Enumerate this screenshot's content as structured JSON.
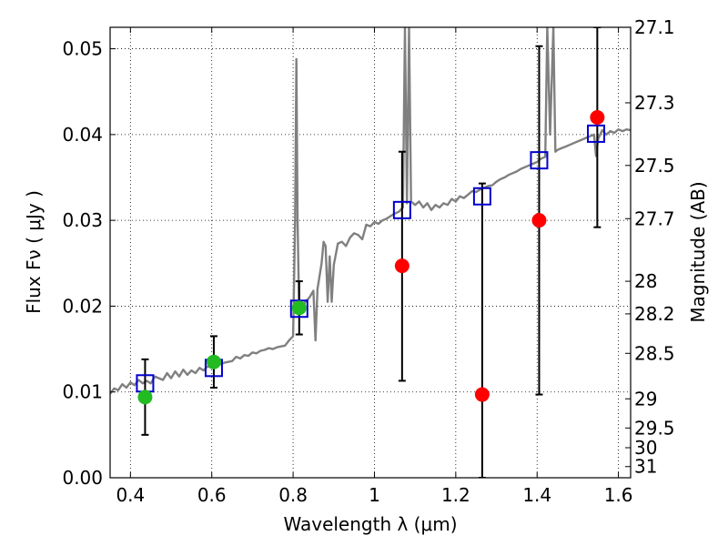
{
  "chart_data": {
    "type": "scatter",
    "xlabel": "Wavelength  λ (μm)",
    "ylabel": "Flux  Fν ( μJy )",
    "ylabel_right": "Magnitude (AB)",
    "xlim": [
      0.35,
      1.63
    ],
    "ylim": [
      0.0,
      0.0525
    ],
    "grid": true,
    "x_ticks": [
      0.4,
      0.6,
      0.8,
      1.0,
      1.2,
      1.4,
      1.6
    ],
    "x_tick_labels": [
      "0.4",
      "0.6",
      "0.8",
      "1",
      "1.2",
      "1.4",
      "1.6"
    ],
    "y_ticks": [
      0.0,
      0.01,
      0.02,
      0.03,
      0.04,
      0.05
    ],
    "y_tick_labels": [
      "0.00",
      "0.01",
      "0.02",
      "0.03",
      "0.04",
      "0.05"
    ],
    "right_ticks": [
      {
        "flux": 0.0525,
        "label": "27.1"
      },
      {
        "flux": 0.0437,
        "label": "27.3"
      },
      {
        "flux": 0.0364,
        "label": "27.5"
      },
      {
        "flux": 0.0302,
        "label": "27.7"
      },
      {
        "flux": 0.0229,
        "label": "28"
      },
      {
        "flux": 0.0191,
        "label": "28.2"
      },
      {
        "flux": 0.0145,
        "label": "28.5"
      },
      {
        "flux": 0.0092,
        "label": "29"
      },
      {
        "flux": 0.0058,
        "label": "29.5"
      },
      {
        "flux": 0.0035,
        "label": "30"
      },
      {
        "flux": 0.0013,
        "label": "31"
      }
    ],
    "template_spectrum": {
      "color": "#808080",
      "points": [
        [
          0.35,
          0.0098
        ],
        [
          0.36,
          0.0104
        ],
        [
          0.37,
          0.0102
        ],
        [
          0.38,
          0.0109
        ],
        [
          0.39,
          0.0105
        ],
        [
          0.4,
          0.0111
        ],
        [
          0.41,
          0.0108
        ],
        [
          0.42,
          0.0114
        ],
        [
          0.43,
          0.011
        ],
        [
          0.44,
          0.0113
        ],
        [
          0.45,
          0.011
        ],
        [
          0.46,
          0.0118
        ],
        [
          0.47,
          0.0116
        ],
        [
          0.48,
          0.0114
        ],
        [
          0.49,
          0.0122
        ],
        [
          0.5,
          0.0116
        ],
        [
          0.51,
          0.0124
        ],
        [
          0.52,
          0.0118
        ],
        [
          0.53,
          0.0126
        ],
        [
          0.54,
          0.012
        ],
        [
          0.55,
          0.0125
        ],
        [
          0.56,
          0.0122
        ],
        [
          0.57,
          0.0128
        ],
        [
          0.58,
          0.0125
        ],
        [
          0.59,
          0.013
        ],
        [
          0.6,
          0.0128
        ],
        [
          0.61,
          0.0131
        ],
        [
          0.62,
          0.0132
        ],
        [
          0.63,
          0.0134
        ],
        [
          0.64,
          0.0135
        ],
        [
          0.65,
          0.0136
        ],
        [
          0.66,
          0.0141
        ],
        [
          0.67,
          0.0139
        ],
        [
          0.68,
          0.0143
        ],
        [
          0.69,
          0.0142
        ],
        [
          0.7,
          0.0146
        ],
        [
          0.71,
          0.0145
        ],
        [
          0.72,
          0.0148
        ],
        [
          0.73,
          0.0149
        ],
        [
          0.74,
          0.0151
        ],
        [
          0.75,
          0.015
        ],
        [
          0.76,
          0.0152
        ],
        [
          0.77,
          0.0153
        ],
        [
          0.78,
          0.0154
        ],
        [
          0.79,
          0.016
        ],
        [
          0.8,
          0.0165
        ],
        [
          0.805,
          0.03
        ],
        [
          0.808,
          0.0488
        ],
        [
          0.811,
          0.03
        ],
        [
          0.815,
          0.019
        ],
        [
          0.82,
          0.0195
        ],
        [
          0.83,
          0.0205
        ],
        [
          0.84,
          0.021
        ],
        [
          0.85,
          0.0218
        ],
        [
          0.855,
          0.016
        ],
        [
          0.86,
          0.022
        ],
        [
          0.87,
          0.025
        ],
        [
          0.875,
          0.0275
        ],
        [
          0.88,
          0.027
        ],
        [
          0.885,
          0.0205
        ],
        [
          0.89,
          0.0258
        ],
        [
          0.895,
          0.0205
        ],
        [
          0.9,
          0.0248
        ],
        [
          0.91,
          0.0273
        ],
        [
          0.92,
          0.0275
        ],
        [
          0.93,
          0.027
        ],
        [
          0.94,
          0.028
        ],
        [
          0.95,
          0.0285
        ],
        [
          0.96,
          0.0283
        ],
        [
          0.97,
          0.0278
        ],
        [
          0.98,
          0.0295
        ],
        [
          0.99,
          0.0293
        ],
        [
          1.0,
          0.0298
        ],
        [
          1.01,
          0.0296
        ],
        [
          1.02,
          0.03
        ],
        [
          1.03,
          0.0302
        ],
        [
          1.04,
          0.0305
        ],
        [
          1.05,
          0.0308
        ],
        [
          1.06,
          0.031
        ],
        [
          1.07,
          0.0315
        ],
        [
          1.075,
          0.0525
        ],
        [
          1.08,
          0.032
        ],
        [
          1.085,
          0.0525
        ],
        [
          1.09,
          0.0322
        ],
        [
          1.1,
          0.0318
        ],
        [
          1.11,
          0.0322
        ],
        [
          1.12,
          0.0315
        ],
        [
          1.13,
          0.032
        ],
        [
          1.14,
          0.0312
        ],
        [
          1.15,
          0.0318
        ],
        [
          1.16,
          0.0315
        ],
        [
          1.17,
          0.032
        ],
        [
          1.18,
          0.0318
        ],
        [
          1.19,
          0.0325
        ],
        [
          1.2,
          0.0322
        ],
        [
          1.21,
          0.0328
        ],
        [
          1.22,
          0.0326
        ],
        [
          1.23,
          0.033
        ],
        [
          1.24,
          0.0334
        ],
        [
          1.25,
          0.0333
        ],
        [
          1.26,
          0.0336
        ],
        [
          1.27,
          0.0338
        ],
        [
          1.28,
          0.034
        ],
        [
          1.29,
          0.0341
        ],
        [
          1.3,
          0.0345
        ],
        [
          1.31,
          0.0348
        ],
        [
          1.32,
          0.035
        ],
        [
          1.33,
          0.0353
        ],
        [
          1.34,
          0.0355
        ],
        [
          1.35,
          0.0357
        ],
        [
          1.36,
          0.036
        ],
        [
          1.37,
          0.0362
        ],
        [
          1.38,
          0.0364
        ],
        [
          1.39,
          0.0366
        ],
        [
          1.4,
          0.0368
        ],
        [
          1.41,
          0.0372
        ],
        [
          1.42,
          0.0374
        ],
        [
          1.425,
          0.0525
        ],
        [
          1.432,
          0.04
        ],
        [
          1.44,
          0.0525
        ],
        [
          1.445,
          0.038
        ],
        [
          1.45,
          0.0382
        ],
        [
          1.46,
          0.0384
        ],
        [
          1.47,
          0.0386
        ],
        [
          1.48,
          0.0388
        ],
        [
          1.49,
          0.039
        ],
        [
          1.5,
          0.0392
        ],
        [
          1.51,
          0.0394
        ],
        [
          1.52,
          0.0396
        ],
        [
          1.53,
          0.0398
        ],
        [
          1.54,
          0.04
        ],
        [
          1.545,
          0.0375
        ],
        [
          1.55,
          0.0395
        ],
        [
          1.56,
          0.0405
        ],
        [
          1.57,
          0.04
        ],
        [
          1.58,
          0.0404
        ],
        [
          1.59,
          0.0402
        ],
        [
          1.6,
          0.0406
        ],
        [
          1.61,
          0.0404
        ],
        [
          1.62,
          0.0406
        ],
        [
          1.63,
          0.0405
        ]
      ]
    },
    "model_points": {
      "color": "#0000cc",
      "points": [
        [
          0.436,
          0.011
        ],
        [
          0.605,
          0.0128
        ],
        [
          0.815,
          0.0197
        ],
        [
          1.068,
          0.0312
        ],
        [
          1.265,
          0.0328
        ],
        [
          1.405,
          0.037
        ],
        [
          1.545,
          0.0401
        ]
      ]
    },
    "green_points": {
      "color": "#22bb22",
      "points": [
        {
          "x": 0.436,
          "y": 0.0094,
          "lo": 0.005,
          "hi": 0.0138
        },
        {
          "x": 0.605,
          "y": 0.0135,
          "lo": 0.0105,
          "hi": 0.0165
        },
        {
          "x": 0.815,
          "y": 0.0198,
          "lo": 0.0167,
          "hi": 0.0229
        }
      ]
    },
    "red_points": {
      "color": "#ff0000",
      "points": [
        {
          "x": 1.068,
          "y": 0.0247,
          "lo": 0.0113,
          "hi": 0.038
        },
        {
          "x": 1.265,
          "y": 0.0097,
          "lo": 0.0,
          "hi": 0.0343
        },
        {
          "x": 1.405,
          "y": 0.03,
          "lo": 0.0097,
          "hi": 0.0503
        },
        {
          "x": 1.548,
          "y": 0.042,
          "lo": 0.0292,
          "hi": 0.0525
        }
      ]
    }
  }
}
